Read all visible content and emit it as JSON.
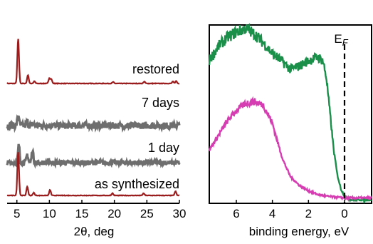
{
  "chart_data": [
    {
      "type": "line",
      "xlabel": "2θ, deg",
      "ylabel": "",
      "xlim": [
        3.5,
        30
      ],
      "x_ticks": [
        5,
        10,
        15,
        20,
        25,
        30
      ],
      "x_tick_labels": [
        "5",
        "10",
        "15",
        "20",
        "25",
        "30"
      ],
      "grid": false,
      "colors": {
        "restored": "#9b1c1c",
        "7 days": "#6e6e6e",
        "1 day": "#6e6e6e",
        "as synthesized": "#9b1c1c"
      },
      "series": [
        {
          "name": "restored",
          "offset": 0.93,
          "noise": 0.012,
          "peaks": [
            [
              5.2,
              2.4
            ],
            [
              6.7,
              0.45
            ],
            [
              7.7,
              0.12
            ],
            [
              10.0,
              0.28
            ],
            [
              10.3,
              0.22
            ],
            [
              19.8,
              0.08
            ],
            [
              24.6,
              0.1
            ],
            [
              29.0,
              0.1
            ],
            [
              29.5,
              0.13
            ]
          ]
        },
        {
          "name": "7 days",
          "offset": 1.82,
          "noise": 0.18,
          "peaks": [
            [
              5.2,
              0.55
            ],
            [
              6.6,
              0.2
            ],
            [
              7.5,
              0.12
            ]
          ]
        },
        {
          "name": "1 day",
          "offset": 1.05,
          "noise": 0.13,
          "peaks": [
            [
              5.3,
              0.95
            ],
            [
              6.6,
              0.45
            ],
            [
              7.4,
              0.7
            ],
            [
              10.0,
              0.1
            ]
          ]
        },
        {
          "name": "as synthesized",
          "offset": 0.0,
          "noise": 0.012,
          "peaks": [
            [
              5.2,
              2.35
            ],
            [
              6.6,
              0.48
            ],
            [
              7.6,
              0.15
            ],
            [
              10.1,
              0.3
            ],
            [
              19.7,
              0.12
            ],
            [
              24.5,
              0.12
            ],
            [
              29.4,
              0.22
            ]
          ]
        }
      ]
    },
    {
      "type": "line",
      "xlabel": "binding energy, eV",
      "ylabel": "",
      "xlim": [
        7.5,
        -1.5
      ],
      "x_ticks": [
        6,
        4,
        2,
        0
      ],
      "x_tick_labels": [
        "6",
        "4",
        "2",
        "0"
      ],
      "fermi_label": "E",
      "fermi_subscript": "F",
      "fermi_energy": 0,
      "grid": false,
      "series": [
        {
          "color": "#1a8f4a",
          "points": [
            [
              7.5,
              0.8
            ],
            [
              7.0,
              0.88
            ],
            [
              6.5,
              0.93
            ],
            [
              6.0,
              0.96
            ],
            [
              5.5,
              0.98
            ],
            [
              5.0,
              0.95
            ],
            [
              4.5,
              0.9
            ],
            [
              4.0,
              0.84
            ],
            [
              3.5,
              0.8
            ],
            [
              3.0,
              0.75
            ],
            [
              2.5,
              0.77
            ],
            [
              2.0,
              0.8
            ],
            [
              1.5,
              0.82
            ],
            [
              1.2,
              0.8
            ],
            [
              1.0,
              0.7
            ],
            [
              0.8,
              0.5
            ],
            [
              0.6,
              0.3
            ],
            [
              0.4,
              0.16
            ],
            [
              0.2,
              0.08
            ],
            [
              0.0,
              0.04
            ],
            [
              -0.3,
              0.02
            ],
            [
              -1.0,
              0.02
            ],
            [
              -1.5,
              0.02
            ]
          ]
        },
        {
          "color": "#d63db2",
          "points": [
            [
              7.5,
              0.3
            ],
            [
              7.0,
              0.38
            ],
            [
              6.5,
              0.46
            ],
            [
              6.0,
              0.52
            ],
            [
              5.5,
              0.56
            ],
            [
              5.0,
              0.57
            ],
            [
              4.5,
              0.55
            ],
            [
              4.0,
              0.45
            ],
            [
              3.7,
              0.34
            ],
            [
              3.4,
              0.24
            ],
            [
              3.0,
              0.15
            ],
            [
              2.5,
              0.1
            ],
            [
              2.0,
              0.07
            ],
            [
              1.5,
              0.05
            ],
            [
              1.0,
              0.04
            ],
            [
              0.0,
              0.03
            ],
            [
              -1.0,
              0.03
            ],
            [
              -1.5,
              0.03
            ]
          ]
        }
      ]
    }
  ]
}
